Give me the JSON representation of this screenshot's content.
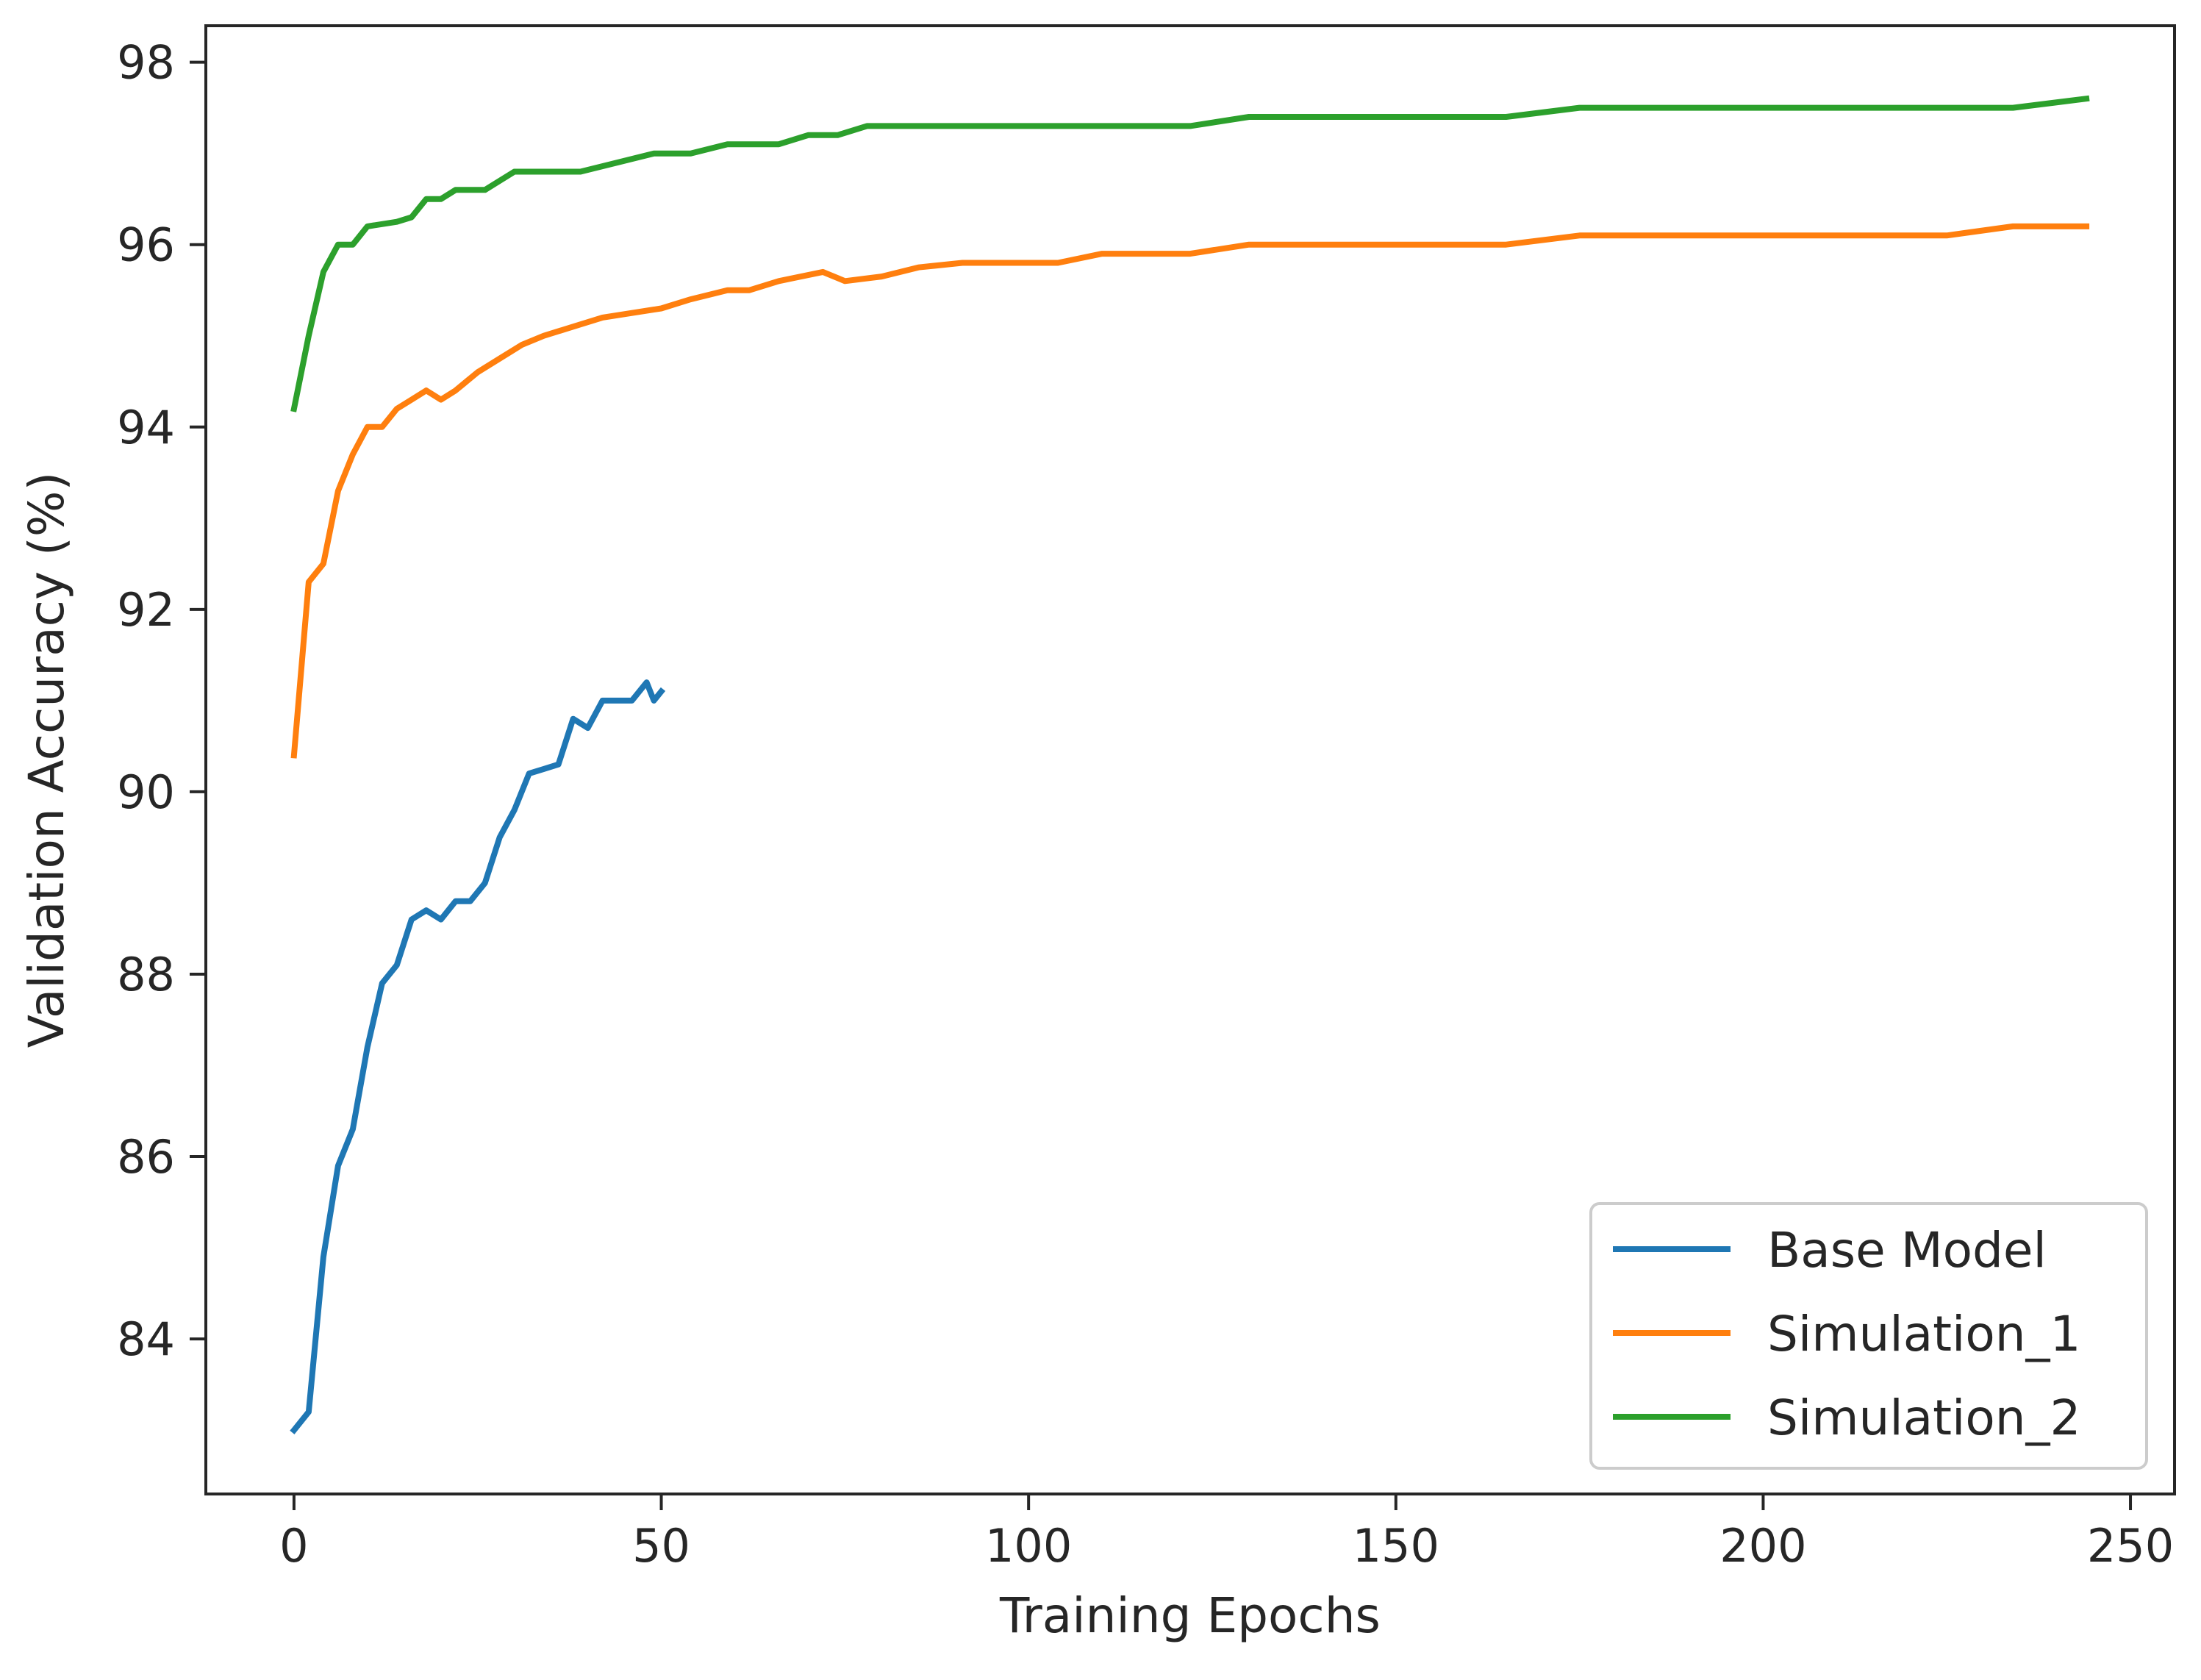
{
  "chart_data": {
    "type": "line",
    "title": "",
    "xlabel": "Training Epochs",
    "ylabel": "Validation Accuracy (%)",
    "xlim": [
      -12,
      256
    ],
    "ylim": [
      82.3,
      98.4
    ],
    "xticks": [
      0,
      50,
      100,
      150,
      200,
      250
    ],
    "yticks": [
      84,
      86,
      88,
      90,
      92,
      94,
      96,
      98
    ],
    "grid": false,
    "legend_position": "lower-right",
    "series": [
      {
        "name": "Base Model",
        "color": "#1f77b4",
        "x": [
          0,
          2,
          4,
          6,
          8,
          10,
          12,
          14,
          16,
          18,
          20,
          22,
          24,
          26,
          28,
          30,
          32,
          34,
          36,
          38,
          40,
          42,
          44,
          46,
          48,
          49,
          50
        ],
        "y": [
          83.0,
          83.2,
          84.9,
          85.9,
          86.3,
          87.2,
          87.9,
          88.1,
          88.6,
          88.7,
          88.6,
          88.8,
          88.8,
          89.0,
          89.5,
          89.8,
          90.2,
          90.25,
          90.3,
          90.8,
          90.7,
          91.0,
          91.0,
          91.0,
          91.2,
          91.0,
          91.1
        ]
      },
      {
        "name": "Simulation_1",
        "color": "#ff7f0e",
        "x": [
          0,
          2,
          4,
          6,
          8,
          10,
          12,
          14,
          16,
          18,
          20,
          22,
          25,
          28,
          31,
          34,
          38,
          42,
          46,
          50,
          54,
          59,
          62,
          66,
          72,
          75,
          80,
          85,
          91,
          98,
          104,
          110,
          116,
          122,
          130,
          140,
          150,
          165,
          175,
          190,
          210,
          225,
          234,
          244
        ],
        "y": [
          90.4,
          92.3,
          92.5,
          93.3,
          93.7,
          94.0,
          94.0,
          94.2,
          94.3,
          94.4,
          94.3,
          94.4,
          94.6,
          94.75,
          94.9,
          95.0,
          95.1,
          95.2,
          95.25,
          95.3,
          95.4,
          95.5,
          95.5,
          95.6,
          95.7,
          95.6,
          95.65,
          95.75,
          95.8,
          95.8,
          95.8,
          95.9,
          95.9,
          95.9,
          96.0,
          96.0,
          96.0,
          96.0,
          96.1,
          96.1,
          96.1,
          96.1,
          96.2,
          96.2
        ]
      },
      {
        "name": "Simulation_2",
        "color": "#2ca02c",
        "x": [
          0,
          2,
          4,
          6,
          8,
          10,
          14,
          16,
          18,
          20,
          22,
          24,
          26,
          30,
          34,
          39,
          44,
          49,
          54,
          59,
          62,
          66,
          70,
          74,
          78,
          84,
          92,
          100,
          110,
          122,
          130,
          140,
          150,
          165,
          175,
          190,
          210,
          225,
          234,
          244
        ],
        "y": [
          94.2,
          95.0,
          95.7,
          96.0,
          96.0,
          96.2,
          96.25,
          96.3,
          96.5,
          96.5,
          96.6,
          96.6,
          96.6,
          96.8,
          96.8,
          96.8,
          96.9,
          97.0,
          97.0,
          97.1,
          97.1,
          97.1,
          97.2,
          97.2,
          97.3,
          97.3,
          97.3,
          97.3,
          97.3,
          97.3,
          97.4,
          97.4,
          97.4,
          97.4,
          97.5,
          97.5,
          97.5,
          97.5,
          97.5,
          97.6
        ]
      }
    ]
  }
}
